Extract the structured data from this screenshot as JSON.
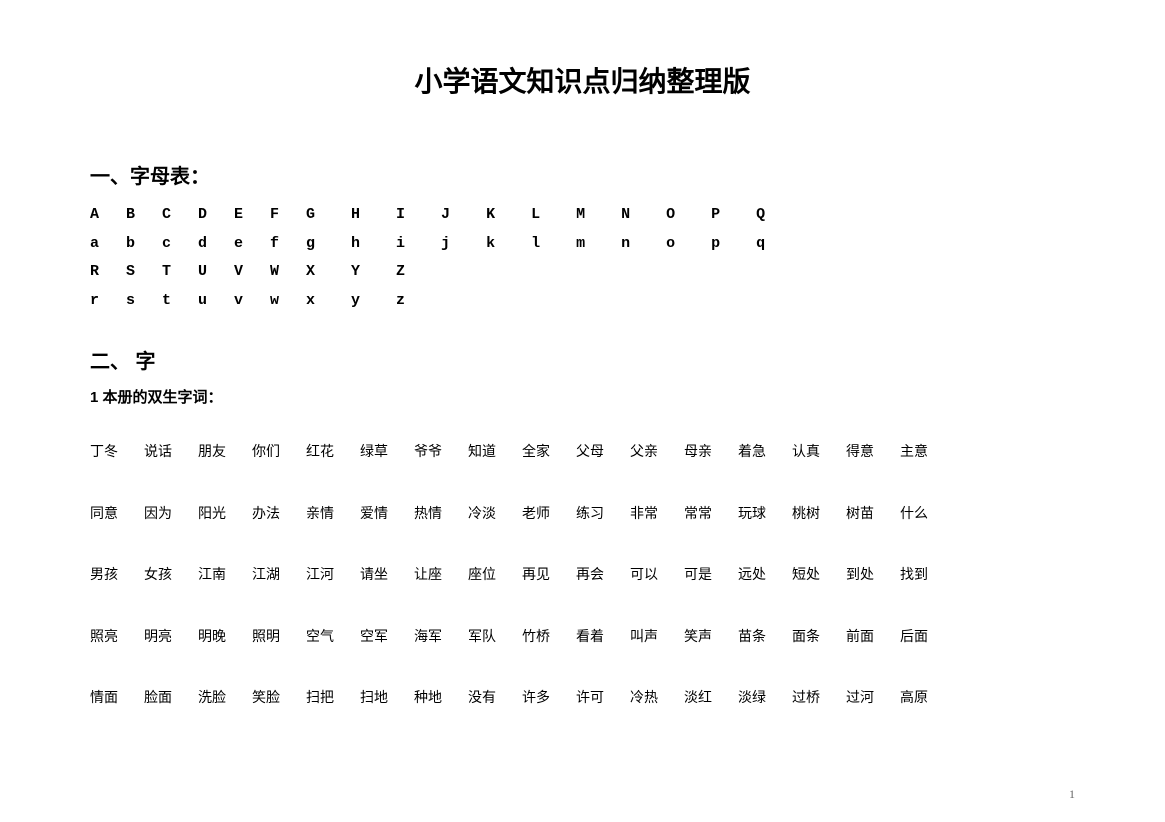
{
  "title": "小学语文知识点归纳整理版",
  "section1": {
    "heading": "一、字母表：",
    "rows": [
      "A   B   C   D   E   F   G    H    I    J    K    L    M    N    O    P    Q",
      "a   b   c   d   e   f   g    h    i    j    k    l    m    n    o    p    q",
      "R   S   T   U   V   W   X    Y    Z",
      "r   s   t   u   v   w   x    y    z"
    ]
  },
  "section2": {
    "heading": "二、 字",
    "subheading": "1 本册的双生字词：",
    "wordRows": [
      [
        "丁冬",
        "说话",
        "朋友",
        "你们",
        "红花",
        "绿草",
        "爷爷",
        "知道",
        "全家",
        "父母",
        "父亲",
        "母亲",
        "着急",
        "认真",
        "得意",
        "主意"
      ],
      [
        "同意",
        "因为",
        "阳光",
        "办法",
        "亲情",
        "爱情",
        "热情",
        "冷淡",
        "老师",
        "练习",
        "非常",
        "常常",
        "玩球",
        "桃树",
        "树苗",
        "什么"
      ],
      [
        "男孩",
        "女孩",
        "江南",
        "江湖",
        "江河",
        "请坐",
        "让座",
        "座位",
        "再见",
        "再会",
        "可以",
        "可是",
        "远处",
        "短处",
        "到处",
        "找到"
      ],
      [
        "照亮",
        "明亮",
        "明晚",
        "照明",
        "空气",
        "空军",
        "海军",
        "军队",
        "竹桥",
        "看着",
        "叫声",
        "笑声",
        "苗条",
        "面条",
        "前面",
        "后面"
      ],
      [
        "情面",
        "脸面",
        "洗脸",
        "笑脸",
        "扫把",
        "扫地",
        "种地",
        "没有",
        "许多",
        "许可",
        "冷热",
        "淡红",
        "淡绿",
        "过桥",
        "过河",
        "高原"
      ]
    ]
  },
  "pageNumber": "1",
  "colors": {
    "background": "#ffffff",
    "text": "#000000",
    "pageNum": "#666666"
  }
}
